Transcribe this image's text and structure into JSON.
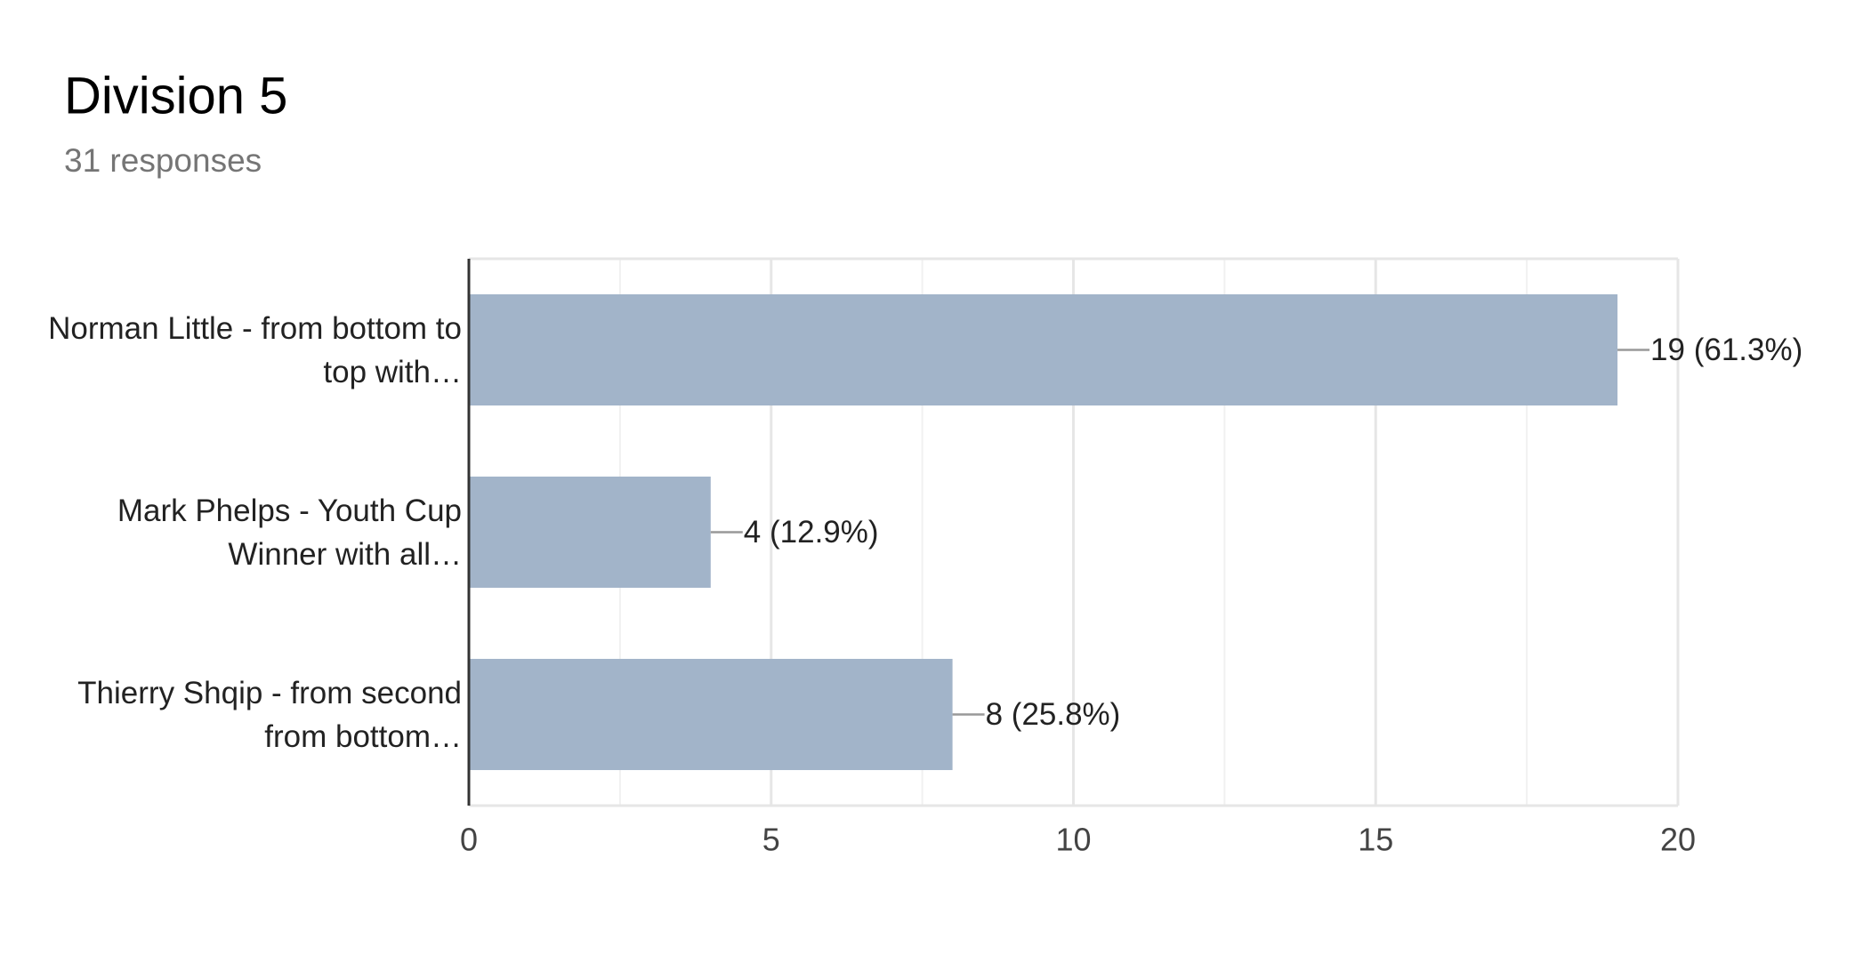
{
  "chart_data": {
    "type": "bar",
    "orientation": "horizontal",
    "title": "Division 5",
    "subtitle": "31 responses",
    "categories": [
      "Norman Little - from bottom to top with…",
      "Mark Phelps - Youth Cup Winner with all…",
      "Thierry Shqip - from second from bottom…"
    ],
    "values": [
      19,
      4,
      8
    ],
    "value_labels": [
      "19 (61.3%)",
      "4 (12.9%)",
      "8 (25.8%)"
    ],
    "color": "#a2b4c9",
    "xlim": [
      0,
      20
    ],
    "xticks": [
      0,
      5,
      10,
      15,
      20
    ],
    "grid": true
  }
}
